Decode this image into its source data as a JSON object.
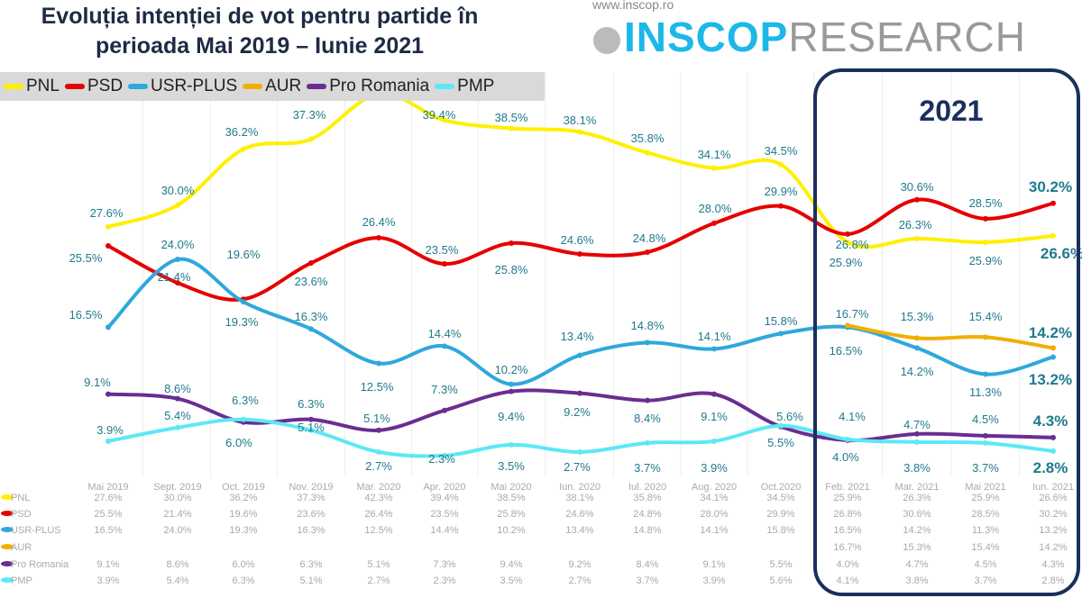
{
  "title": "Evoluția intenției de vot pentru partide în perioada Mai 2019 – Iunie 2021",
  "logo": {
    "url": "www.inscop.ro",
    "brand_a": "INSCOP",
    "brand_b": "RESEARCH"
  },
  "highlight_label": "2021",
  "chart_data": {
    "type": "line",
    "title": "Evoluția intenției de vot pentru partide în perioada Mai 2019 – Iunie 2021",
    "legend": "top-left",
    "categories": [
      "Mai 2019",
      "Sept. 2019",
      "Oct. 2019",
      "Nov. 2019",
      "Mar. 2020",
      "Apr. 2020",
      "Mai 2020",
      "Iun. 2020",
      "Iul. 2020",
      "Aug. 2020",
      "Oct.2020",
      "Feb. 2021",
      "Mar. 2021",
      "Mai 2021",
      "Iun. 2021"
    ],
    "unit": "%",
    "series": [
      {
        "name": "PNL",
        "color": "#ffef00",
        "values": [
          27.6,
          30.0,
          36.2,
          37.3,
          42.3,
          39.4,
          38.5,
          38.1,
          35.8,
          34.1,
          34.5,
          25.9,
          26.3,
          25.9,
          26.6
        ]
      },
      {
        "name": "PSD",
        "color": "#e60000",
        "values": [
          25.5,
          21.4,
          19.6,
          23.6,
          26.4,
          23.5,
          25.8,
          24.6,
          24.8,
          28.0,
          29.9,
          26.8,
          30.6,
          28.5,
          30.2
        ]
      },
      {
        "name": "USR-PLUS",
        "color": "#2fa8dc",
        "values": [
          16.5,
          24.0,
          19.3,
          16.3,
          12.5,
          14.4,
          10.2,
          13.4,
          14.8,
          14.1,
          15.8,
          16.5,
          14.2,
          11.3,
          13.2
        ]
      },
      {
        "name": "AUR",
        "color": "#f0b000",
        "values": [
          null,
          null,
          null,
          null,
          null,
          null,
          null,
          null,
          null,
          null,
          null,
          16.7,
          15.3,
          15.4,
          14.2
        ]
      },
      {
        "name": "Pro Romania",
        "color": "#6a2d91",
        "values": [
          9.1,
          8.6,
          6.0,
          6.3,
          5.1,
          7.3,
          9.4,
          9.2,
          8.4,
          9.1,
          5.5,
          4.0,
          4.7,
          4.5,
          4.3
        ]
      },
      {
        "name": "PMP",
        "color": "#5ce8f5",
        "values": [
          3.9,
          5.4,
          6.3,
          5.1,
          2.7,
          2.3,
          3.5,
          2.7,
          3.7,
          3.9,
          5.6,
          4.1,
          3.8,
          3.7,
          2.8
        ]
      }
    ],
    "label_color": "#1f7a8c",
    "highlight_box_color": "#1b2f5e",
    "data_table": true
  }
}
